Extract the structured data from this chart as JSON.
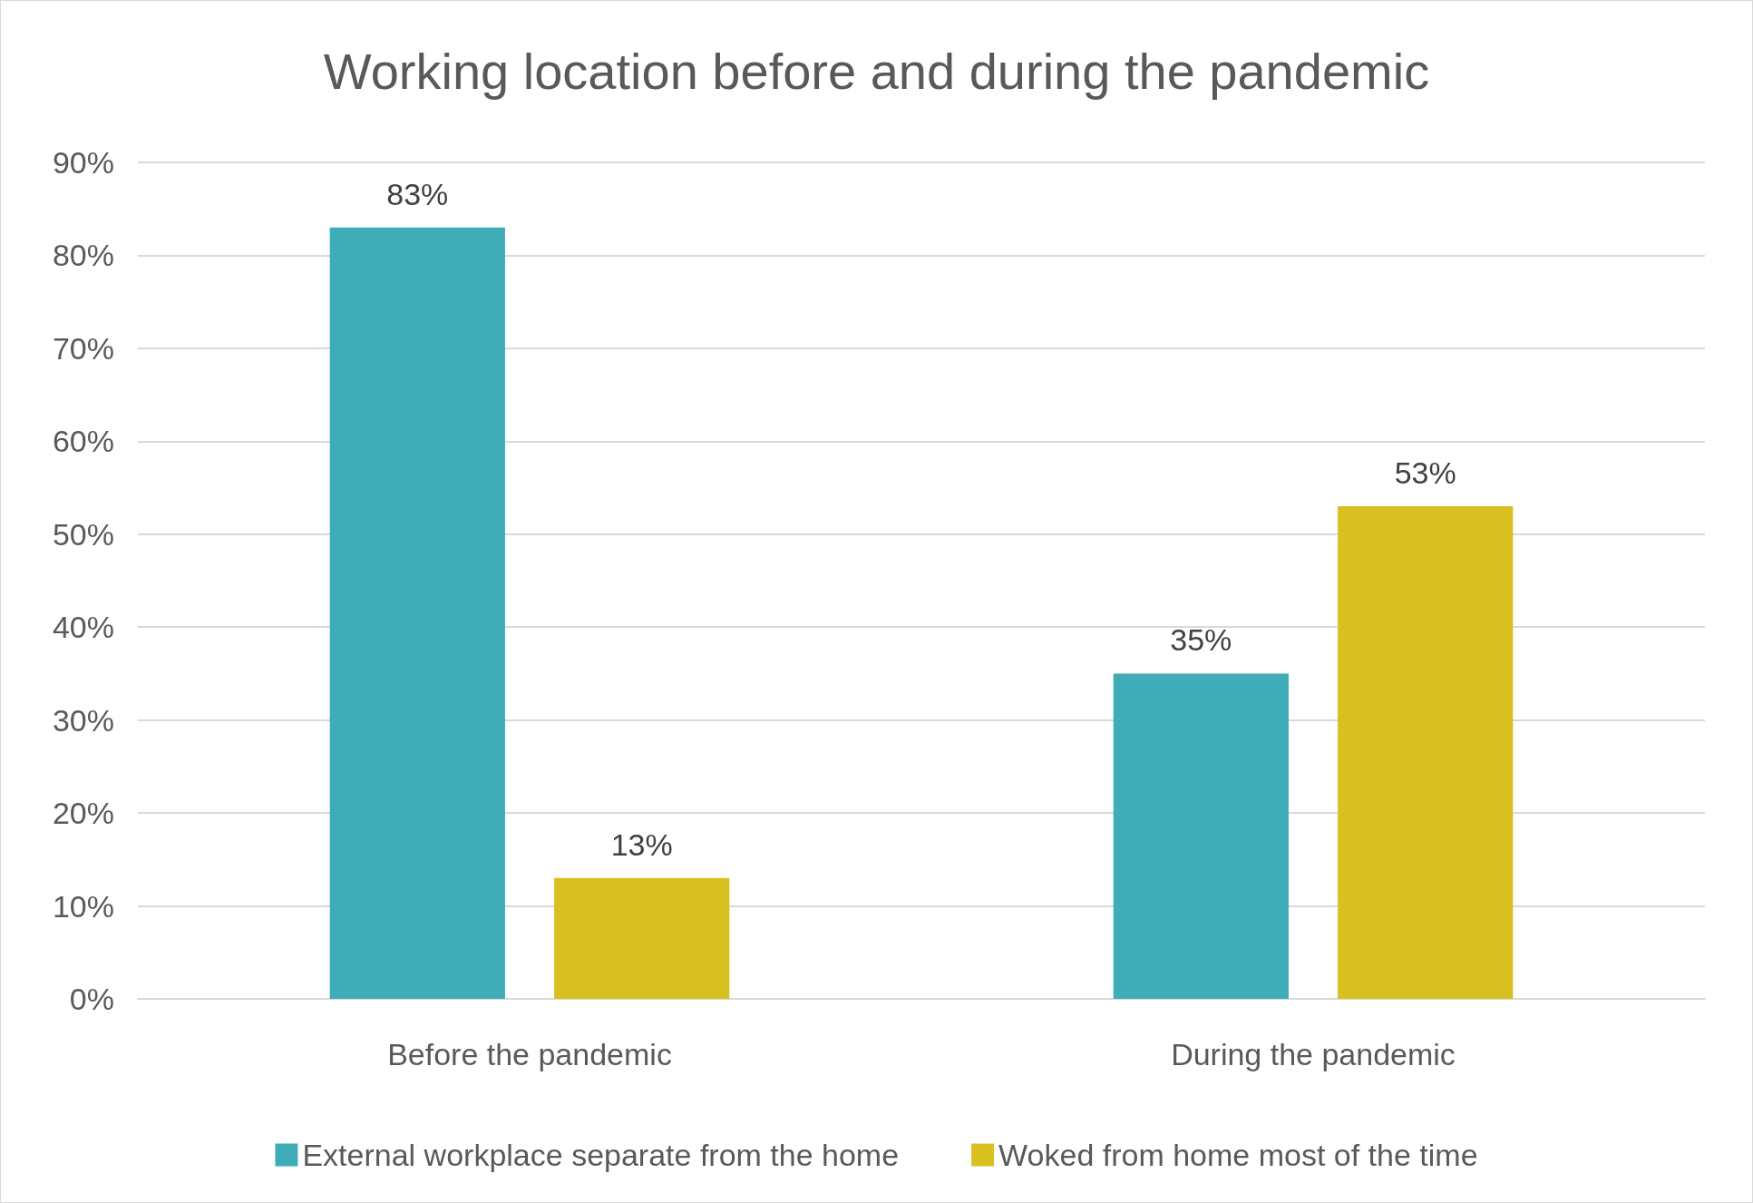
{
  "chart_data": {
    "type": "bar",
    "title": "Working location before and during the pandemic",
    "categories": [
      "Before the pandemic",
      "During the pandemic"
    ],
    "series": [
      {
        "name": "External workplace separate from the home",
        "color": "#3fadb7",
        "values": [
          83,
          35
        ],
        "value_labels": [
          "83%",
          "35%"
        ]
      },
      {
        "name": "Woked from home most of the time",
        "color": "#d8c021",
        "values": [
          13,
          53
        ],
        "value_labels": [
          "13%",
          "53%"
        ]
      }
    ],
    "ylim": [
      0,
      90
    ],
    "yticks": [
      {
        "value": 0,
        "label": "0%"
      },
      {
        "value": 10,
        "label": "10%"
      },
      {
        "value": 20,
        "label": "20%"
      },
      {
        "value": 30,
        "label": "30%"
      },
      {
        "value": 40,
        "label": "40%"
      },
      {
        "value": 50,
        "label": "50%"
      },
      {
        "value": 60,
        "label": "60%"
      },
      {
        "value": 70,
        "label": "70%"
      },
      {
        "value": 80,
        "label": "80%"
      },
      {
        "value": 90,
        "label": "90%"
      }
    ],
    "grid": "y",
    "legend": "bottom"
  }
}
